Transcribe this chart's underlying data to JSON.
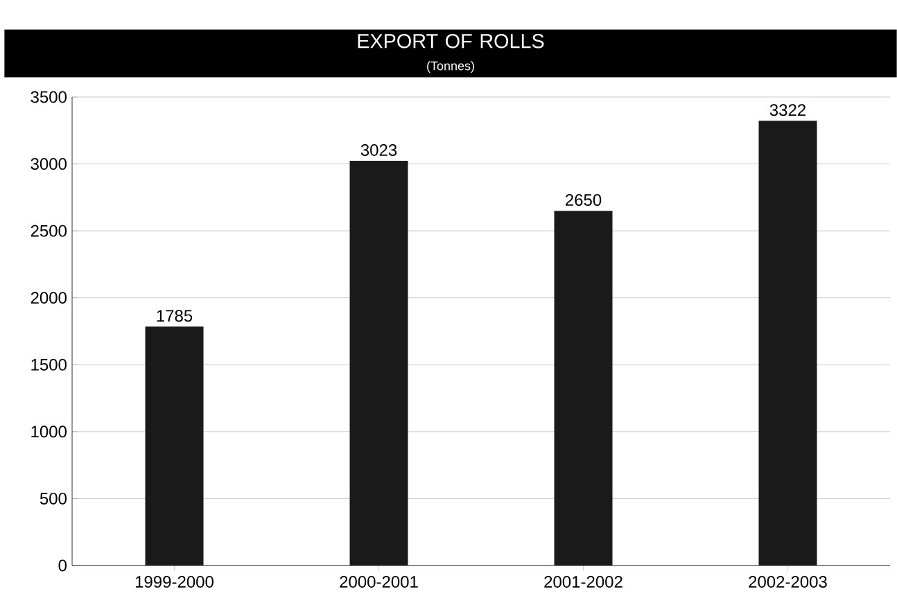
{
  "chart_data": {
    "type": "bar",
    "title": "EXPORT OF ROLLS",
    "subtitle": "(Tonnes)",
    "categories": [
      "1999-2000",
      "2000-2001",
      "2001-2002",
      "2002-2003"
    ],
    "values": [
      1785,
      3023,
      2650,
      3322
    ],
    "color": "#1a1a1a",
    "ylim": [
      0,
      3500
    ],
    "yticks": [
      0,
      500,
      1000,
      1500,
      2000,
      2500,
      3000,
      3500
    ],
    "grid": "y",
    "data_labels": true
  }
}
